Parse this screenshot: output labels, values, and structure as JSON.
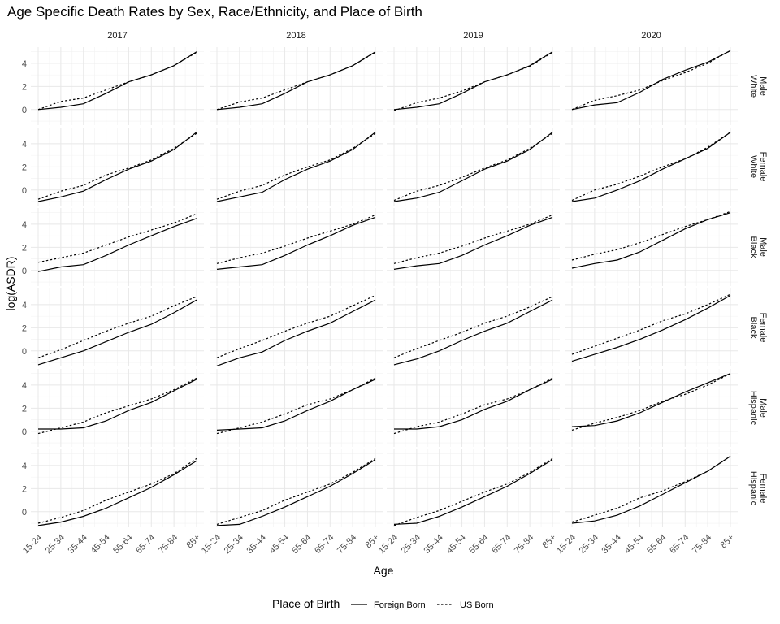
{
  "chart_data": {
    "type": "line",
    "title": "Age Specific Death Rates by Sex, Race/Ethnicity, and Place of Birth",
    "xlabel": "Age",
    "ylabel": "log(ASDR)",
    "legend_title": "Place of Birth",
    "legend_position": "bottom",
    "grid": true,
    "categories": [
      "15-24",
      "25-34",
      "35-44",
      "45-54",
      "55-64",
      "65-74",
      "75-84",
      "85+"
    ],
    "columns": [
      "2017",
      "2018",
      "2019",
      "2020"
    ],
    "rows": [
      {
        "race": "White",
        "sex": "Male"
      },
      {
        "race": "White",
        "sex": "Female"
      },
      {
        "race": "Black",
        "sex": "Male"
      },
      {
        "race": "Black",
        "sex": "Female"
      },
      {
        "race": "Hispanic",
        "sex": "Male"
      },
      {
        "race": "Hispanic",
        "sex": "Female"
      }
    ],
    "y_ticks": [
      0,
      2,
      4
    ],
    "ylim": [
      -1.35,
      5.4
    ],
    "series_styles": [
      {
        "name": "Foreign Born",
        "dash": "solid",
        "color": "#000000"
      },
      {
        "name": "US Born",
        "dash": "dotted",
        "color": "#000000"
      }
    ],
    "panels": [
      [
        {
          "year": "2017",
          "series": [
            {
              "name": "Foreign Born",
              "values": [
                0.0,
                0.2,
                0.5,
                1.4,
                2.4,
                3.0,
                3.8,
                5.0
              ]
            },
            {
              "name": "US Born",
              "values": [
                0.0,
                0.7,
                1.0,
                1.7,
                2.4,
                3.0,
                3.8,
                4.95
              ]
            }
          ]
        },
        {
          "year": "2018",
          "series": [
            {
              "name": "Foreign Born",
              "values": [
                0.0,
                0.2,
                0.5,
                1.4,
                2.4,
                3.0,
                3.8,
                5.0
              ]
            },
            {
              "name": "US Born",
              "values": [
                0.0,
                0.65,
                1.0,
                1.7,
                2.4,
                3.0,
                3.8,
                4.95
              ]
            }
          ]
        },
        {
          "year": "2019",
          "series": [
            {
              "name": "Foreign Born",
              "values": [
                0.0,
                0.2,
                0.5,
                1.4,
                2.4,
                3.0,
                3.8,
                5.0
              ]
            },
            {
              "name": "US Born",
              "values": [
                -0.1,
                0.6,
                1.0,
                1.6,
                2.4,
                3.0,
                3.75,
                4.95
              ]
            }
          ]
        },
        {
          "year": "2020",
          "series": [
            {
              "name": "Foreign Born",
              "values": [
                0.0,
                0.4,
                0.6,
                1.5,
                2.6,
                3.4,
                4.1,
                5.1
              ]
            },
            {
              "name": "US Born",
              "values": [
                0.0,
                0.8,
                1.2,
                1.7,
                2.5,
                3.2,
                4.0,
                5.1
              ]
            }
          ]
        }
      ],
      [
        {
          "year": "2017",
          "series": [
            {
              "name": "Foreign Born",
              "values": [
                -1.0,
                -0.6,
                -0.1,
                0.9,
                1.8,
                2.5,
                3.5,
                5.0
              ]
            },
            {
              "name": "US Born",
              "values": [
                -0.8,
                -0.1,
                0.4,
                1.3,
                1.9,
                2.6,
                3.6,
                4.9
              ]
            }
          ]
        },
        {
          "year": "2018",
          "series": [
            {
              "name": "Foreign Born",
              "values": [
                -1.0,
                -0.6,
                -0.2,
                0.9,
                1.8,
                2.5,
                3.5,
                5.0
              ]
            },
            {
              "name": "US Born",
              "values": [
                -0.8,
                -0.1,
                0.4,
                1.3,
                2.0,
                2.6,
                3.6,
                4.9
              ]
            }
          ]
        },
        {
          "year": "2019",
          "series": [
            {
              "name": "Foreign Born",
              "values": [
                -1.0,
                -0.7,
                -0.2,
                0.8,
                1.8,
                2.5,
                3.5,
                5.0
              ]
            },
            {
              "name": "US Born",
              "values": [
                -0.9,
                -0.1,
                0.4,
                1.1,
                1.9,
                2.6,
                3.6,
                4.9
              ]
            }
          ]
        },
        {
          "year": "2020",
          "series": [
            {
              "name": "Foreign Born",
              "values": [
                -1.0,
                -0.7,
                0.0,
                0.8,
                1.8,
                2.7,
                3.6,
                5.0
              ]
            },
            {
              "name": "US Born",
              "values": [
                -0.9,
                0.0,
                0.5,
                1.2,
                2.0,
                2.7,
                3.7,
                5.0
              ]
            }
          ]
        }
      ],
      [
        {
          "year": "2017",
          "series": [
            {
              "name": "Foreign Born",
              "values": [
                -0.1,
                0.3,
                0.5,
                1.3,
                2.2,
                3.0,
                3.8,
                4.5
              ]
            },
            {
              "name": "US Born",
              "values": [
                0.7,
                1.1,
                1.5,
                2.2,
                2.9,
                3.5,
                4.1,
                4.9
              ]
            }
          ]
        },
        {
          "year": "2018",
          "series": [
            {
              "name": "Foreign Born",
              "values": [
                0.1,
                0.3,
                0.5,
                1.3,
                2.2,
                3.0,
                3.9,
                4.6
              ]
            },
            {
              "name": "US Born",
              "values": [
                0.6,
                1.1,
                1.5,
                2.1,
                2.8,
                3.4,
                4.0,
                4.8
              ]
            }
          ]
        },
        {
          "year": "2019",
          "series": [
            {
              "name": "Foreign Born",
              "values": [
                0.1,
                0.4,
                0.6,
                1.3,
                2.2,
                3.0,
                3.9,
                4.6
              ]
            },
            {
              "name": "US Born",
              "values": [
                0.6,
                1.1,
                1.5,
                2.1,
                2.8,
                3.4,
                4.0,
                4.8
              ]
            }
          ]
        },
        {
          "year": "2020",
          "series": [
            {
              "name": "Foreign Born",
              "values": [
                0.2,
                0.6,
                0.9,
                1.6,
                2.6,
                3.6,
                4.4,
                5.0
              ]
            },
            {
              "name": "US Born",
              "values": [
                0.9,
                1.4,
                1.8,
                2.4,
                3.1,
                3.8,
                4.4,
                5.1
              ]
            }
          ]
        }
      ],
      [
        {
          "year": "2017",
          "series": [
            {
              "name": "Foreign Born",
              "values": [
                -1.2,
                -0.6,
                0.0,
                0.8,
                1.6,
                2.3,
                3.3,
                4.4
              ]
            },
            {
              "name": "US Born",
              "values": [
                -0.6,
                0.1,
                0.9,
                1.7,
                2.4,
                3.0,
                3.9,
                4.7
              ]
            }
          ]
        },
        {
          "year": "2018",
          "series": [
            {
              "name": "Foreign Born",
              "values": [
                -1.3,
                -0.6,
                -0.1,
                0.9,
                1.7,
                2.4,
                3.4,
                4.4
              ]
            },
            {
              "name": "US Born",
              "values": [
                -0.6,
                0.2,
                0.9,
                1.7,
                2.4,
                3.0,
                3.9,
                4.8
              ]
            }
          ]
        },
        {
          "year": "2019",
          "series": [
            {
              "name": "Foreign Born",
              "values": [
                -1.2,
                -0.7,
                0.0,
                0.9,
                1.7,
                2.4,
                3.4,
                4.4
              ]
            },
            {
              "name": "US Born",
              "values": [
                -0.6,
                0.2,
                0.9,
                1.6,
                2.4,
                3.0,
                3.8,
                4.7
              ]
            }
          ]
        },
        {
          "year": "2020",
          "series": [
            {
              "name": "Foreign Born",
              "values": [
                -0.9,
                -0.3,
                0.3,
                1.0,
                1.8,
                2.7,
                3.7,
                4.8
              ]
            },
            {
              "name": "US Born",
              "values": [
                -0.3,
                0.4,
                1.1,
                1.8,
                2.6,
                3.2,
                4.0,
                4.9
              ]
            }
          ]
        }
      ],
      [
        {
          "year": "2017",
          "series": [
            {
              "name": "Foreign Born",
              "values": [
                0.2,
                0.2,
                0.3,
                0.9,
                1.8,
                2.5,
                3.5,
                4.5
              ]
            },
            {
              "name": "US Born",
              "values": [
                -0.2,
                0.3,
                0.8,
                1.6,
                2.2,
                2.8,
                3.6,
                4.6
              ]
            }
          ]
        },
        {
          "year": "2018",
          "series": [
            {
              "name": "Foreign Born",
              "values": [
                0.1,
                0.2,
                0.3,
                0.9,
                1.8,
                2.6,
                3.6,
                4.5
              ]
            },
            {
              "name": "US Born",
              "values": [
                -0.2,
                0.3,
                0.8,
                1.5,
                2.3,
                2.8,
                3.6,
                4.6
              ]
            }
          ]
        },
        {
          "year": "2019",
          "series": [
            {
              "name": "Foreign Born",
              "values": [
                0.2,
                0.2,
                0.4,
                1.0,
                1.9,
                2.6,
                3.6,
                4.5
              ]
            },
            {
              "name": "US Born",
              "values": [
                -0.2,
                0.4,
                0.8,
                1.5,
                2.3,
                2.8,
                3.6,
                4.6
              ]
            }
          ]
        },
        {
          "year": "2020",
          "series": [
            {
              "name": "Foreign Born",
              "values": [
                0.4,
                0.5,
                0.9,
                1.6,
                2.5,
                3.4,
                4.2,
                5.0
              ]
            },
            {
              "name": "US Born",
              "values": [
                0.1,
                0.7,
                1.2,
                1.8,
                2.6,
                3.2,
                4.0,
                5.0
              ]
            }
          ]
        }
      ],
      [
        {
          "year": "2017",
          "series": [
            {
              "name": "Foreign Born",
              "values": [
                -1.2,
                -0.9,
                -0.4,
                0.3,
                1.2,
                2.1,
                3.2,
                4.4
              ]
            },
            {
              "name": "US Born",
              "values": [
                -1.0,
                -0.5,
                0.1,
                1.0,
                1.7,
                2.4,
                3.3,
                4.6
              ]
            }
          ]
        },
        {
          "year": "2018",
          "series": [
            {
              "name": "Foreign Born",
              "values": [
                -1.2,
                -1.1,
                -0.4,
                0.4,
                1.3,
                2.2,
                3.3,
                4.5
              ]
            },
            {
              "name": "US Born",
              "values": [
                -1.1,
                -0.5,
                0.1,
                1.0,
                1.7,
                2.4,
                3.4,
                4.6
              ]
            }
          ]
        },
        {
          "year": "2019",
          "series": [
            {
              "name": "Foreign Born",
              "values": [
                -1.1,
                -1.0,
                -0.4,
                0.4,
                1.3,
                2.2,
                3.3,
                4.5
              ]
            },
            {
              "name": "US Born",
              "values": [
                -1.2,
                -0.5,
                0.1,
                0.9,
                1.7,
                2.4,
                3.4,
                4.6
              ]
            }
          ]
        },
        {
          "year": "2020",
          "series": [
            {
              "name": "Foreign Born",
              "values": [
                -1.0,
                -0.8,
                -0.3,
                0.5,
                1.5,
                2.5,
                3.5,
                4.8
              ]
            },
            {
              "name": "US Born",
              "values": [
                -0.9,
                -0.3,
                0.3,
                1.2,
                1.8,
                2.6,
                3.5,
                4.8
              ]
            }
          ]
        }
      ]
    ]
  }
}
